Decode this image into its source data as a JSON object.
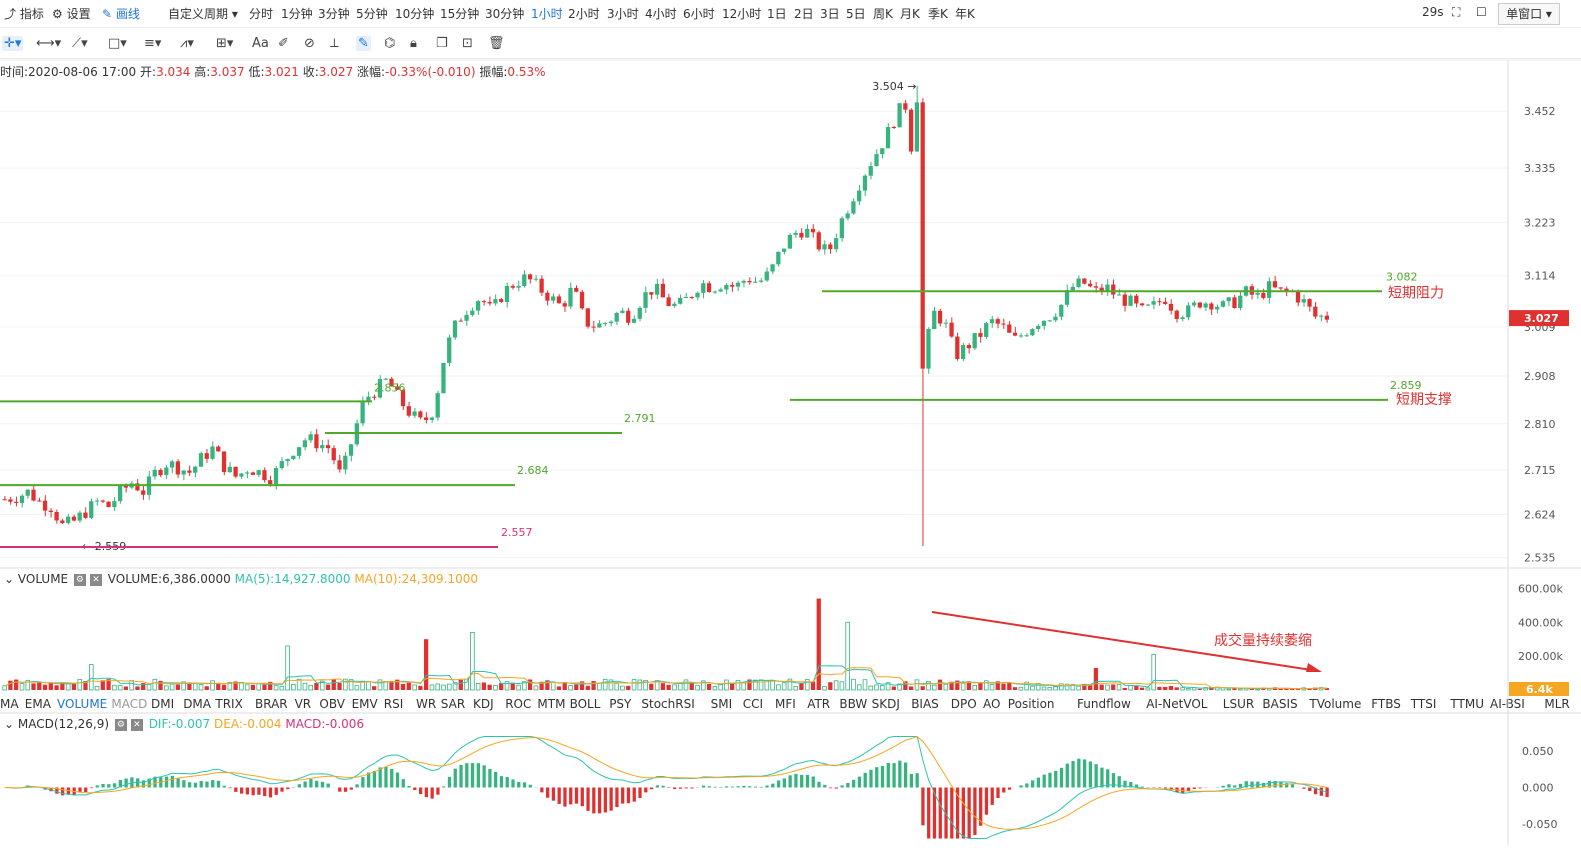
{
  "topbar": {
    "indicators_label": "指标",
    "settings_label": "设置",
    "draw_label": "画线",
    "custom_period": "自定义周期",
    "periods": [
      "分时",
      "1分钟",
      "3分钟",
      "5分钟",
      "10分钟",
      "15分钟",
      "30分钟",
      "1小时",
      "2小时",
      "3小时",
      "4小时",
      "6小时",
      "12小时",
      "1日",
      "2日",
      "3日",
      "5日",
      "周K",
      "月K",
      "季K",
      "年K"
    ],
    "active_period": "1小时",
    "countdown": "29s",
    "window_mode": "单窗口"
  },
  "info": {
    "time_label": "时间:",
    "time": "2020-08-06 17:00",
    "open_label": "开:",
    "open": "3.034",
    "high_label": "高:",
    "high": "3.037",
    "low_label": "低:",
    "low": "3.021",
    "close_label": "收:",
    "close": "3.027",
    "change_label": "涨幅:",
    "change": "-0.33%(-0.010)",
    "amp_label": "振幅:",
    "amp": "0.53%"
  },
  "volume_legend": {
    "name": "VOLUME",
    "value": "VOLUME:6,386.0000",
    "ma5": "MA(5):14,927.8000",
    "ma10": "MA(10):24,309.1000"
  },
  "macd_legend": {
    "name": "MACD(12,26,9)",
    "dif": "DIF:-0.007",
    "dea": "DEA:-0.004",
    "macd": "MACD:-0.006"
  },
  "indicator_tabs": [
    "MA",
    "EMA",
    "VOLUME",
    "MACD",
    "DMI",
    "DMA",
    "TRIX",
    "BRAR",
    "VR",
    "OBV",
    "EMV",
    "RSI",
    "WR",
    "SAR",
    "KDJ",
    "ROC",
    "MTM",
    "BOLL",
    "PSY",
    "StochRSI",
    "SMI",
    "CCI",
    "MFI",
    "ATR",
    "BBW",
    "SKDJ",
    "BIAS",
    "DPO",
    "AO",
    "Position",
    "Fundflow",
    "AI-NetVOL",
    "LSUR",
    "BASIS",
    "TVolume",
    "FTBS",
    "TTSI",
    "TTMU",
    "AI-BSI",
    "MLR"
  ],
  "active_indicator": "VOLUME",
  "colors": {
    "up": "#36b37e",
    "down": "#e03131",
    "level": "#52a829",
    "accent": "#1e74d8",
    "ma5": "#2fc2b0",
    "ma10": "#f5a623",
    "magenta": "#d6317f"
  },
  "chart_data": [
    {
      "type": "candlestick",
      "price_axis_ticks": [
        "3.452",
        "3.335",
        "3.223",
        "3.114",
        "3.009",
        "2.908",
        "2.810",
        "2.715",
        "2.624",
        "2.535"
      ],
      "ylim": [
        2.52,
        3.52
      ],
      "current_price": "3.027",
      "max_marker": "3.504",
      "min_marker": "2.559",
      "levels": [
        {
          "label": "2.856",
          "value": 2.856
        },
        {
          "label": "2.791",
          "value": 2.791
        },
        {
          "label": "2.684",
          "value": 2.684
        },
        {
          "label": "2.557",
          "value": 2.557
        },
        {
          "label": "3.082",
          "value": 3.082,
          "note": "短期阻力"
        },
        {
          "label": "2.859",
          "value": 2.859,
          "note": "短期支撑"
        }
      ],
      "trend_close": [
        2.655,
        2.66,
        2.67,
        2.65,
        2.64,
        2.6,
        2.61,
        2.63,
        2.65,
        2.64,
        2.67,
        2.69,
        2.67,
        2.71,
        2.73,
        2.72,
        2.71,
        2.74,
        2.76,
        2.72,
        2.7,
        2.72,
        2.71,
        2.7,
        2.73,
        2.76,
        2.78,
        2.77,
        2.76,
        2.7,
        2.78,
        2.86,
        2.88,
        2.9,
        2.86,
        2.83,
        2.81,
        2.84,
        2.96,
        3.02,
        3.05,
        3.07,
        3.04,
        3.08,
        3.1,
        3.11,
        3.09,
        3.07,
        3.05,
        3.09,
        3.02,
        3.01,
        3.02,
        3.04,
        3.03,
        3.07,
        3.09,
        3.06,
        3.05,
        3.07,
        3.1,
        3.09,
        3.1,
        3.09,
        3.11,
        3.1,
        3.12,
        3.17,
        3.2,
        3.21,
        3.18,
        3.16,
        3.22,
        3.27,
        3.32,
        3.36,
        3.4,
        3.45,
        3.47,
        2.9,
        3.04,
        3.02,
        2.95,
        2.97,
        2.99,
        3.02,
        3.01,
        2.98,
        3.0,
        3.02,
        3.03,
        3.05,
        3.09,
        3.1,
        3.08,
        3.09,
        3.07,
        3.06,
        3.04,
        3.05,
        3.07,
        3.04,
        3.04,
        3.06,
        3.06,
        3.05,
        3.06,
        3.08,
        3.07,
        3.09,
        3.08,
        3.08,
        3.06,
        3.03,
        3.03
      ],
      "trend_close_units": "price"
    },
    {
      "type": "bar",
      "name": "VOLUME",
      "axis_ticks": [
        "600.00k",
        "400.00k",
        "200.00k"
      ],
      "current_value": "6.4k",
      "annotation": "成交量持续萎缩",
      "spikes": [
        {
          "pos": 0.064,
          "value": 150000
        },
        {
          "pos": 0.215,
          "value": 260000
        },
        {
          "pos": 0.319,
          "value": 300000
        },
        {
          "pos": 0.352,
          "value": 340000
        },
        {
          "pos": 0.612,
          "value": 540000
        },
        {
          "pos": 0.633,
          "value": 400000
        },
        {
          "pos": 0.82,
          "value": 130000
        },
        {
          "pos": 0.865,
          "value": 210000
        }
      ],
      "ylim": [
        0,
        620000
      ]
    },
    {
      "type": "bar",
      "name": "MACD",
      "axis_ticks": [
        "0.050",
        "0.000",
        "-0.050"
      ],
      "ylim": [
        -0.072,
        0.072
      ]
    }
  ]
}
